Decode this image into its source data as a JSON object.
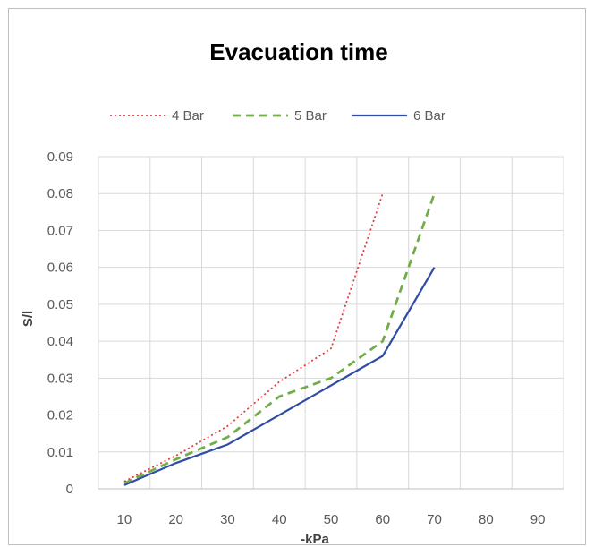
{
  "chart_data": {
    "type": "line",
    "title": "Evacuation time",
    "xlabel": "-kPa",
    "ylabel": "S/l",
    "x_ticks": [
      "10",
      "20",
      "30",
      "40",
      "50",
      "60",
      "70",
      "80",
      "90"
    ],
    "y_ticks": [
      "0",
      "0.01",
      "0.02",
      "0.03",
      "0.04",
      "0.05",
      "0.06",
      "0.07",
      "0.08",
      "0.09"
    ],
    "xlim": [
      10,
      90
    ],
    "ylim": [
      0,
      0.09
    ],
    "grid": true,
    "legend": "top",
    "series": [
      {
        "name": "4 Bar",
        "color": "#e8383d",
        "dash": "dotted",
        "x": [
          10,
          20,
          30,
          40,
          50,
          60
        ],
        "y": [
          0.002,
          0.009,
          0.017,
          0.029,
          0.038,
          0.08
        ]
      },
      {
        "name": "5 Bar",
        "color": "#70ad47",
        "dash": "dashed",
        "x": [
          10,
          20,
          30,
          40,
          50,
          60,
          70
        ],
        "y": [
          0.0015,
          0.008,
          0.014,
          0.025,
          0.03,
          0.04,
          0.08
        ]
      },
      {
        "name": "6 Bar",
        "color": "#2f4ea3",
        "dash": "solid",
        "x": [
          10,
          20,
          30,
          40,
          50,
          60,
          70
        ],
        "y": [
          0.001,
          0.007,
          0.012,
          0.02,
          0.028,
          0.036,
          0.06
        ]
      }
    ]
  }
}
